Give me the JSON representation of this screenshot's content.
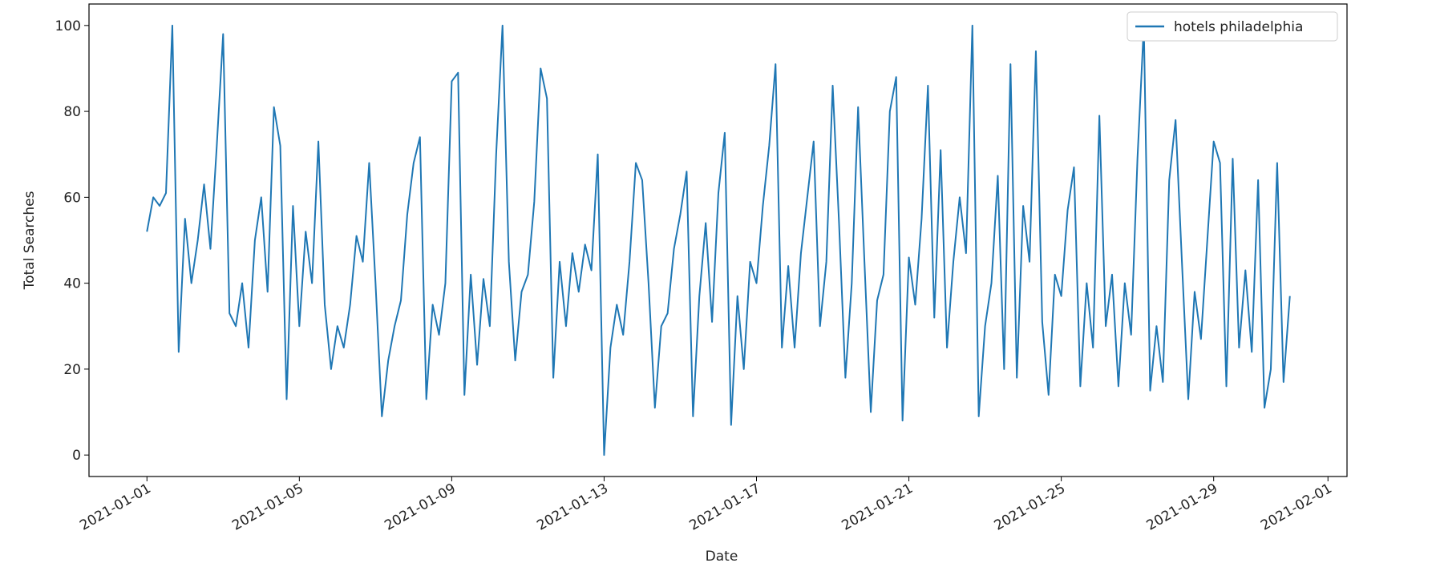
{
  "chart_data": {
    "type": "line",
    "x_label": "Date",
    "y_label": "Total Searches",
    "x": [
      0,
      4,
      8,
      12,
      16,
      20,
      24,
      28,
      32,
      36,
      40,
      44,
      48,
      52,
      56,
      60,
      64,
      68,
      72,
      76,
      80,
      84,
      88,
      92,
      96,
      100,
      104,
      108,
      112,
      116,
      120,
      124,
      128,
      132,
      136,
      140,
      144,
      148,
      152,
      156,
      160,
      164,
      168,
      172,
      176,
      180,
      184,
      188,
      192,
      196,
      200,
      204,
      208,
      212,
      216,
      220,
      224,
      228,
      232,
      236,
      240,
      244,
      248,
      252,
      256,
      260,
      264,
      268,
      272,
      276,
      280,
      284,
      288,
      292,
      296,
      300,
      304,
      308,
      312,
      316,
      320,
      324,
      328,
      332,
      336,
      340,
      344,
      348,
      352,
      356,
      360,
      364,
      368,
      372,
      376,
      380,
      384,
      388,
      392,
      396,
      400,
      404,
      408,
      412,
      416,
      420,
      424,
      428,
      432,
      436,
      440,
      444,
      448,
      452,
      456,
      460,
      464,
      468,
      472,
      476,
      480,
      484,
      488,
      492,
      496,
      500,
      504,
      508,
      512,
      516,
      520,
      524,
      528,
      532,
      536,
      540,
      544,
      548,
      552,
      556,
      560,
      564,
      568,
      572,
      576,
      580,
      584,
      588,
      592,
      596,
      600,
      604,
      608,
      612,
      616,
      620,
      624,
      628,
      632,
      636,
      640,
      644,
      648,
      652,
      656,
      660,
      664,
      668,
      672,
      676,
      680,
      684,
      688,
      692,
      696,
      700,
      704,
      708,
      712,
      716,
      720
    ],
    "series": [
      {
        "name": "hotels philadelphia",
        "color": "#1f77b4",
        "values": [
          52,
          60,
          58,
          61,
          100,
          24,
          55,
          40,
          50,
          63,
          48,
          72,
          98,
          33,
          30,
          40,
          25,
          50,
          60,
          38,
          81,
          72,
          13,
          58,
          30,
          52,
          40,
          73,
          35,
          20,
          30,
          25,
          35,
          51,
          45,
          68,
          40,
          9,
          22,
          30,
          36,
          56,
          68,
          74,
          13,
          35,
          28,
          40,
          87,
          89,
          14,
          42,
          21,
          41,
          30,
          70,
          100,
          45,
          22,
          38,
          42,
          59,
          90,
          83,
          18,
          45,
          30,
          47,
          38,
          49,
          43,
          70,
          0,
          25,
          35,
          28,
          45,
          68,
          64,
          40,
          11,
          30,
          33,
          48,
          56,
          66,
          9,
          37,
          54,
          31,
          61,
          75,
          7,
          37,
          20,
          45,
          40,
          58,
          72,
          91,
          25,
          44,
          25,
          47,
          60,
          73,
          30,
          45,
          86,
          54,
          18,
          40,
          81,
          45,
          10,
          36,
          42,
          80,
          88,
          8,
          46,
          35,
          55,
          86,
          32,
          71,
          25,
          45,
          60,
          47,
          100,
          9,
          30,
          40,
          65,
          20,
          91,
          18,
          58,
          45,
          94,
          31,
          14,
          42,
          37,
          57,
          67,
          16,
          40,
          25,
          79,
          30,
          42,
          16,
          40,
          28,
          69,
          100,
          15,
          30,
          17,
          64,
          78,
          45,
          13,
          38,
          27,
          50,
          73,
          68,
          16,
          69,
          25,
          43,
          24,
          64,
          11,
          20,
          68,
          17,
          37
        ]
      }
    ],
    "xlim": [
      -36.5,
      756
    ],
    "xticks": [
      {
        "value": 0,
        "label": "2021-01-01"
      },
      {
        "value": 96,
        "label": "2021-01-05"
      },
      {
        "value": 192,
        "label": "2021-01-09"
      },
      {
        "value": 288,
        "label": "2021-01-13"
      },
      {
        "value": 384,
        "label": "2021-01-17"
      },
      {
        "value": 480,
        "label": "2021-01-21"
      },
      {
        "value": 576,
        "label": "2021-01-25"
      },
      {
        "value": 672,
        "label": "2021-01-29"
      },
      {
        "value": 744,
        "label": "2021-02-01"
      }
    ],
    "ylim": [
      -5,
      105
    ],
    "yticks": [
      0,
      20,
      40,
      60,
      80,
      100
    ],
    "legend": "upper right"
  }
}
